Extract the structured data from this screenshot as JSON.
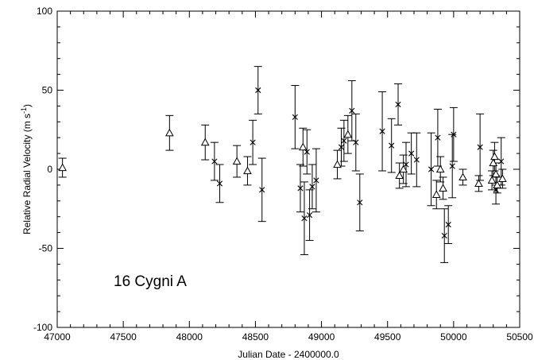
{
  "chart_data": {
    "type": "scatter",
    "xlabel": "Julian Date - 2400000.0",
    "ylabel": "Relative Radial Velocity (m s",
    "ylabel_superscript": "-1",
    "ylabel_close": ")",
    "annotation": "16 Cygni A",
    "xlim": [
      47000,
      50500
    ],
    "ylim": [
      -100,
      100
    ],
    "xticks": [
      47000,
      47500,
      48000,
      48500,
      49000,
      49500,
      50000,
      50500
    ],
    "yticks": [
      -100,
      -50,
      0,
      50,
      100
    ],
    "grid": false,
    "series": [
      {
        "marker": "triangle",
        "points": [
          {
            "x": 47040,
            "y": 1,
            "err": 6
          },
          {
            "x": 47850,
            "y": 23,
            "err": 11
          },
          {
            "x": 48120,
            "y": 17,
            "err": 11
          },
          {
            "x": 48360,
            "y": 5,
            "err": 10
          },
          {
            "x": 48440,
            "y": -1,
            "err": 9
          },
          {
            "x": 48860,
            "y": 14,
            "err": 12
          },
          {
            "x": 49120,
            "y": 3,
            "err": 9
          },
          {
            "x": 49200,
            "y": 22,
            "err": 12
          },
          {
            "x": 49590,
            "y": -4,
            "err": 8
          },
          {
            "x": 49620,
            "y": 0,
            "err": 9
          },
          {
            "x": 49870,
            "y": -16,
            "err": 9
          },
          {
            "x": 49900,
            "y": 0,
            "err": 8
          },
          {
            "x": 49920,
            "y": -12,
            "err": 7
          },
          {
            "x": 50070,
            "y": -5,
            "err": 5
          },
          {
            "x": 50190,
            "y": -9,
            "err": 5
          },
          {
            "x": 50290,
            "y": -7,
            "err": 6
          },
          {
            "x": 50300,
            "y": 4,
            "err": 8
          },
          {
            "x": 50310,
            "y": 8,
            "err": 9
          },
          {
            "x": 50320,
            "y": -3,
            "err": 7
          },
          {
            "x": 50330,
            "y": -10,
            "err": 5
          },
          {
            "x": 50370,
            "y": -6,
            "err": 6
          }
        ]
      },
      {
        "marker": "x",
        "points": [
          {
            "x": 48190,
            "y": 5,
            "err": 12
          },
          {
            "x": 48230,
            "y": -9,
            "err": 12
          },
          {
            "x": 48480,
            "y": 17,
            "err": 14
          },
          {
            "x": 48520,
            "y": 50,
            "err": 15
          },
          {
            "x": 48550,
            "y": -13,
            "err": 20
          },
          {
            "x": 48800,
            "y": 33,
            "err": 20
          },
          {
            "x": 48840,
            "y": -12,
            "err": 15
          },
          {
            "x": 48870,
            "y": -31,
            "err": 23
          },
          {
            "x": 48890,
            "y": 11,
            "err": 14
          },
          {
            "x": 48910,
            "y": -29,
            "err": 16
          },
          {
            "x": 48930,
            "y": -11,
            "err": 14
          },
          {
            "x": 48960,
            "y": -7,
            "err": 20
          },
          {
            "x": 49150,
            "y": 14,
            "err": 12
          },
          {
            "x": 49170,
            "y": 18,
            "err": 13
          },
          {
            "x": 49230,
            "y": 37,
            "err": 19
          },
          {
            "x": 49260,
            "y": 17,
            "err": 18
          },
          {
            "x": 49290,
            "y": -21,
            "err": 18
          },
          {
            "x": 49460,
            "y": 24,
            "err": 25
          },
          {
            "x": 49530,
            "y": 15,
            "err": 17
          },
          {
            "x": 49580,
            "y": 41,
            "err": 13
          },
          {
            "x": 49640,
            "y": 3,
            "err": 14
          },
          {
            "x": 49680,
            "y": 10,
            "err": 13
          },
          {
            "x": 49720,
            "y": 6,
            "err": 17
          },
          {
            "x": 49830,
            "y": 0,
            "err": 23
          },
          {
            "x": 49880,
            "y": 20,
            "err": 18
          },
          {
            "x": 49930,
            "y": -42,
            "err": 17
          },
          {
            "x": 49960,
            "y": -35,
            "err": 12
          },
          {
            "x": 49990,
            "y": 2,
            "err": 20
          },
          {
            "x": 50000,
            "y": 22,
            "err": 17
          },
          {
            "x": 50200,
            "y": 14,
            "err": 21
          },
          {
            "x": 50320,
            "y": -13,
            "err": 9
          },
          {
            "x": 50360,
            "y": 5,
            "err": 15
          }
        ]
      }
    ]
  }
}
